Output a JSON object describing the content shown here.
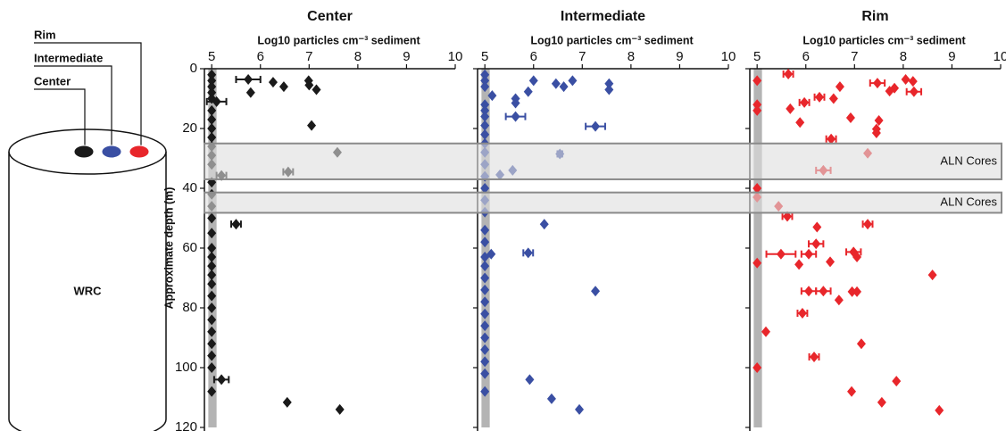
{
  "diagram": {
    "labels": [
      {
        "text": "Rim",
        "color": "#e8262b"
      },
      {
        "text": "Intermediate",
        "color": "#3a4fa3"
      },
      {
        "text": "Center",
        "color": "#1a1a1a"
      }
    ],
    "cylinder_label": "WRC"
  },
  "aln_cores": [
    {
      "label": "ALN Cores",
      "depth": [
        25,
        37
      ]
    },
    {
      "label": "ALN Cores",
      "depth": [
        41.4,
        48.2
      ]
    }
  ],
  "chart_data": [
    {
      "type": "scatter",
      "title": "Center",
      "xlabel": "Log10 particles cm⁻³ sediment",
      "ylabel": "Approximate depth (m)",
      "color": "#1a1a1a",
      "xlim": [
        4.85,
        10
      ],
      "xticks": [
        5,
        6,
        7,
        8,
        9,
        10
      ],
      "ylim": [
        0,
        120
      ],
      "yticks": [
        0,
        20,
        40,
        60,
        80,
        100,
        120
      ],
      "y_inverted": true,
      "x_band": [
        4.93,
        5.1
      ],
      "below_detection": {
        "x": 5,
        "y": [
          2,
          4,
          6,
          8,
          10,
          14,
          17,
          20,
          23,
          26,
          29,
          32,
          38,
          42,
          46,
          50,
          55,
          60,
          63,
          66,
          69,
          72,
          76,
          80,
          84,
          88,
          92,
          96,
          100,
          108
        ]
      },
      "x": [
        5.75,
        5.8,
        6.26,
        6.48,
        6.99,
        7.0,
        7.15,
        7.05,
        7.58,
        6.57,
        5.2,
        5.1,
        5.5,
        5.2,
        6.55,
        7.63
      ],
      "y": [
        3.6,
        8,
        4.5,
        6,
        4,
        5.5,
        7,
        19,
        28,
        34.5,
        35.7,
        11,
        52,
        104,
        111.6,
        114
      ],
      "xerr": [
        0.25,
        null,
        null,
        null,
        null,
        null,
        null,
        null,
        null,
        0.1,
        0.1,
        0.2,
        0.1,
        0.15,
        null,
        null
      ]
    },
    {
      "type": "scatter",
      "title": "Intermediate",
      "xlabel": "Log10 particles cm⁻³ sediment",
      "color": "#3a4fa3",
      "xlim": [
        4.85,
        10
      ],
      "xticks": [
        5,
        6,
        7,
        8,
        9,
        10
      ],
      "ylim": [
        0,
        120
      ],
      "yticks": [
        0,
        20,
        40,
        60,
        80,
        100,
        120
      ],
      "y_inverted": true,
      "x_band": [
        4.93,
        5.1
      ],
      "below_detection": {
        "x": 5,
        "y": [
          2,
          4,
          6,
          12,
          14,
          16,
          19,
          22,
          25,
          28,
          32,
          36,
          40,
          44,
          48,
          54,
          58,
          63,
          66,
          70,
          74,
          78,
          82,
          86,
          90,
          94,
          98,
          102,
          108
        ]
      },
      "x": [
        5.15,
        5.63,
        5.63,
        5.89,
        6.0,
        6.46,
        6.62,
        6.8,
        7.55,
        7.55,
        5.63,
        7.27,
        6.54,
        5.57,
        5.31,
        6.22,
        5.89,
        5.13,
        7.27,
        5.92,
        6.37,
        6.94
      ],
      "y": [
        9,
        10,
        11.5,
        7.7,
        4,
        5,
        6,
        4,
        5,
        7,
        16,
        19.3,
        28.5,
        34,
        35.5,
        52,
        61.6,
        62,
        74.4,
        104,
        110.4,
        114
      ],
      "xerr": [
        null,
        null,
        null,
        null,
        null,
        null,
        null,
        null,
        null,
        null,
        0.2,
        0.2,
        0.05,
        null,
        null,
        null,
        0.1,
        null,
        null,
        null,
        null,
        null
      ]
    },
    {
      "type": "scatter",
      "title": "Rim",
      "xlabel": "Log10 particles cm⁻³ sediment",
      "color": "#e8262b",
      "xlim": [
        4.85,
        10
      ],
      "xticks": [
        5,
        6,
        7,
        8,
        9,
        10
      ],
      "ylim": [
        0,
        120
      ],
      "yticks": [
        0,
        20,
        40,
        60,
        80,
        100,
        120
      ],
      "y_inverted": true,
      "x_band": [
        4.93,
        5.1
      ],
      "below_detection": {
        "x": 5,
        "y": [
          4,
          12,
          14,
          40,
          43,
          65,
          100
        ]
      },
      "x": [
        5.64,
        7.47,
        8.05,
        8.2,
        7.82,
        7.72,
        8.22,
        6.7,
        6.28,
        5.97,
        6.57,
        5.68,
        5.88,
        6.92,
        7.5,
        7.45,
        7.45,
        6.52,
        7.27,
        6.36,
        5.44,
        5.62,
        7.27,
        6.23,
        6.21,
        5.49,
        6.06,
        5.86,
        6.5,
        6.98,
        7.05,
        8.6,
        6.06,
        6.36,
        6.95,
        7.05,
        6.68,
        5.93,
        5.18,
        7.14,
        6.17,
        6.94,
        7.86,
        7.56,
        8.74
      ],
      "y": [
        1.8,
        4.8,
        3.6,
        4.2,
        6.5,
        7.5,
        7.7,
        6,
        9.5,
        11.3,
        10,
        13.4,
        18,
        16.4,
        17.3,
        20.2,
        21.5,
        23.5,
        28.3,
        34,
        46,
        49.4,
        52,
        53,
        58.6,
        62,
        62,
        65.5,
        64.6,
        61.3,
        63,
        69,
        74.4,
        74.4,
        74.6,
        74.6,
        77.4,
        81.8,
        88,
        92,
        96.4,
        108,
        104.5,
        111.6,
        114.3
      ],
      "xerr": [
        0.1,
        0.15,
        null,
        null,
        null,
        null,
        0.15,
        null,
        0.1,
        0.1,
        null,
        null,
        null,
        null,
        null,
        null,
        null,
        0.1,
        null,
        0.15,
        null,
        0.1,
        0.1,
        null,
        0.15,
        0.3,
        0.15,
        null,
        null,
        0.15,
        null,
        null,
        0.15,
        0.15,
        null,
        null,
        null,
        0.1,
        null,
        null,
        0.1,
        null,
        null,
        null,
        null
      ]
    }
  ]
}
